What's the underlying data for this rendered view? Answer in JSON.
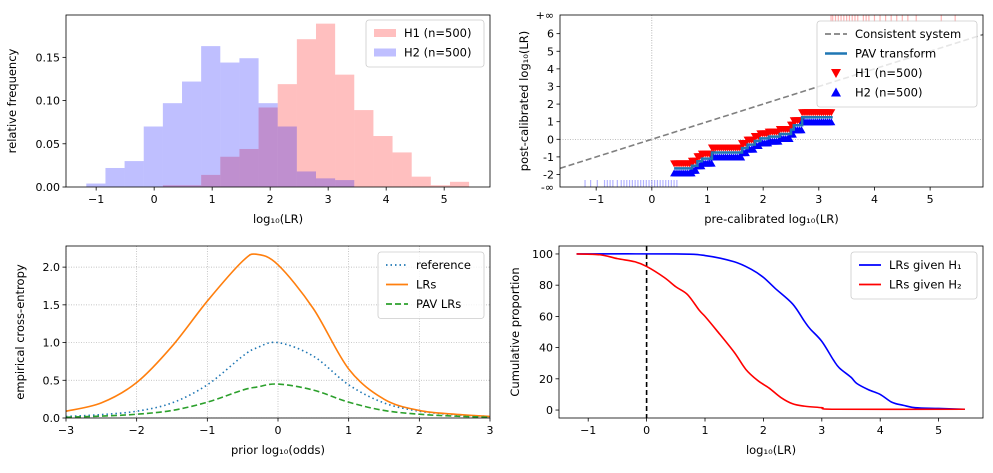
{
  "chart_data": [
    {
      "type": "bar",
      "subtype": "histogram",
      "xlabel": "log₁₀(LR)",
      "ylabel": "relative frequency",
      "xlim": [
        -1.52,
        5.79
      ],
      "ylim": [
        0,
        0.199
      ],
      "xticks": [
        -1,
        0,
        1,
        2,
        3,
        4,
        5
      ],
      "yticks": [
        0,
        0.05,
        0.1,
        0.15
      ],
      "ytick_labels": [
        "0.00",
        "0.05",
        "0.10",
        "0.15"
      ],
      "bin_edges": [
        -1.17,
        -0.84,
        -0.51,
        -0.18,
        0.15,
        0.48,
        0.81,
        1.14,
        1.47,
        1.8,
        2.13,
        2.46,
        2.79,
        3.12,
        3.45,
        3.78,
        4.11,
        4.44,
        4.77,
        5.1,
        5.43
      ],
      "legend": "top-right",
      "series": [
        {
          "name": "H1 (n=500)",
          "color": "#ff0000",
          "alpha": 0.25,
          "values": [
            0,
            0,
            0,
            0,
            0.002,
            0.002,
            0.014,
            0.035,
            0.044,
            0.092,
            0.119,
            0.171,
            0.189,
            0.13,
            0.089,
            0.059,
            0.04,
            0.012,
            0.002,
            0.006
          ]
        },
        {
          "name": "H2 (n=500)",
          "color": "#0000ff",
          "alpha": 0.25,
          "values": [
            0.004,
            0.022,
            0.03,
            0.07,
            0.097,
            0.122,
            0.163,
            0.144,
            0.149,
            0.097,
            0.07,
            0.018,
            0.01,
            0.008,
            0,
            0,
            0,
            0,
            0,
            0
          ]
        }
      ]
    },
    {
      "type": "line",
      "xlabel": "pre-calibrated log₁₀(LR)",
      "ylabel": "post-calibrated log₁₀(LR)",
      "xlim": [
        -1.65,
        5.95
      ],
      "ylim": [
        -2.71,
        7.06
      ],
      "xticks": [
        -1,
        0,
        1,
        2,
        3,
        4,
        5
      ],
      "yticks": [
        -2,
        -1,
        0,
        1,
        2,
        3,
        4,
        5,
        6
      ],
      "inf_labels": {
        "neg": "-∞",
        "pos": "+∞"
      },
      "legend": "top-right",
      "consistent": {
        "name": "Consistent system",
        "color": "#808080"
      },
      "pav": {
        "name": "PAV transform",
        "color": "#1f77b4",
        "steps": [
          [
            0.4,
            0.72,
            -1.65
          ],
          [
            0.72,
            0.82,
            -1.5
          ],
          [
            0.82,
            0.9,
            -1.25
          ],
          [
            0.9,
            1.08,
            -1.1
          ],
          [
            1.08,
            1.62,
            -0.75
          ],
          [
            1.62,
            1.72,
            -0.5
          ],
          [
            1.72,
            1.85,
            -0.3
          ],
          [
            1.85,
            1.95,
            -0.1
          ],
          [
            1.95,
            2.1,
            0.05
          ],
          [
            2.1,
            2.3,
            0.15
          ],
          [
            2.3,
            2.5,
            0.3
          ],
          [
            2.5,
            2.55,
            0.55
          ],
          [
            2.55,
            2.7,
            0.8
          ],
          [
            2.7,
            3.25,
            1.25
          ]
        ]
      },
      "h1": {
        "name": "H1 (n=500)",
        "color": "#ff0000",
        "rug_pos_inf": [
          3.22,
          3.25,
          3.3,
          3.35,
          3.4,
          3.45,
          3.5,
          3.55,
          3.6,
          3.65,
          3.7,
          3.8,
          3.85,
          3.9,
          4.0,
          4.1,
          4.2,
          4.3,
          4.4,
          4.5,
          4.6,
          4.75,
          5.2,
          5.45
        ]
      },
      "h2": {
        "name": "H2 (n=500)",
        "color": "#0000ff",
        "rug_neg_inf": [
          -1.2,
          -1.1,
          -0.98,
          -0.85,
          -0.8,
          -0.75,
          -0.7,
          -0.62,
          -0.55,
          -0.5,
          -0.45,
          -0.4,
          -0.35,
          -0.3,
          -0.25,
          -0.2,
          -0.15,
          -0.1,
          -0.05,
          0,
          0.05,
          0.1,
          0.15,
          0.2,
          0.25,
          0.3,
          0.35,
          0.4,
          0.45
        ]
      }
    },
    {
      "type": "line",
      "xlabel": "prior log₁₀(odds)",
      "ylabel": "empirical cross-entropy",
      "xlim": [
        -3,
        3
      ],
      "ylim": [
        0,
        2.28
      ],
      "xticks": [
        -3,
        -2,
        -1,
        0,
        1,
        2,
        3
      ],
      "yticks": [
        0,
        0.5,
        1.0,
        1.5,
        2.0
      ],
      "ytick_labels": [
        "0.0",
        "0.5",
        "1.0",
        "1.5",
        "2.0"
      ],
      "grid": true,
      "legend": "top-right",
      "x": [
        -3,
        -2.5,
        -2,
        -1.5,
        -1,
        -0.5,
        -0.3,
        0,
        0.5,
        1,
        1.5,
        2,
        2.5,
        3
      ],
      "series": [
        {
          "name": "reference",
          "color": "#1f77b4",
          "style": "dotted",
          "values": [
            0.02,
            0.045,
            0.09,
            0.2,
            0.44,
            0.82,
            0.93,
            1.0,
            0.82,
            0.44,
            0.2,
            0.09,
            0.045,
            0.02
          ]
        },
        {
          "name": "LRs",
          "color": "#ff7f0e",
          "style": "solid",
          "values": [
            0.09,
            0.2,
            0.47,
            0.95,
            1.55,
            2.08,
            2.17,
            2.03,
            1.45,
            0.65,
            0.25,
            0.1,
            0.05,
            0.02
          ]
        },
        {
          "name": "PAV LRs",
          "color": "#2ca02c",
          "style": "dashed",
          "values": [
            0.01,
            0.025,
            0.05,
            0.1,
            0.21,
            0.37,
            0.41,
            0.45,
            0.37,
            0.21,
            0.1,
            0.05,
            0.025,
            0.01
          ]
        }
      ]
    },
    {
      "type": "line",
      "xlabel": "log₁₀(LR)",
      "ylabel": "Cumulative proportion",
      "xlim": [
        -1.5,
        5.76
      ],
      "ylim": [
        -5.1,
        105.1
      ],
      "xticks": [
        -1,
        0,
        1,
        2,
        3,
        4,
        5
      ],
      "yticks": [
        0,
        20,
        40,
        60,
        80,
        100
      ],
      "legend": "top-right",
      "vline": {
        "x": 0,
        "color": "#000000",
        "style": "dashed"
      },
      "series": [
        {
          "name": "LRs given H₁",
          "color": "#0000ff",
          "x": [
            -1.2,
            0.5,
            1,
            1.5,
            1.8,
            2,
            2.2,
            2.5,
            2.7,
            2.8,
            3,
            3.2,
            3.3,
            3.5,
            3.6,
            3.8,
            4,
            4.2,
            4.4,
            4.6,
            5,
            5.45
          ],
          "values": [
            100,
            100,
            99,
            95,
            90,
            85,
            78,
            68,
            57,
            52,
            44,
            32,
            27,
            21,
            17,
            13,
            10,
            5,
            3,
            1.5,
            1,
            0.5
          ]
        },
        {
          "name": "LRs given H₂",
          "color": "#ff0000",
          "x": [
            -1.2,
            -0.8,
            -0.5,
            -0.2,
            0,
            0.3,
            0.5,
            0.7,
            0.9,
            1,
            1.2,
            1.5,
            1.7,
            1.9,
            2.1,
            2.3,
            2.5,
            2.7,
            3,
            3.25,
            5.45
          ],
          "values": [
            100,
            99.5,
            97,
            95,
            92,
            85,
            79,
            74,
            64,
            60,
            51,
            37,
            26,
            19,
            14,
            8,
            4,
            2.5,
            1.5,
            0.5,
            0.5
          ]
        }
      ]
    }
  ]
}
